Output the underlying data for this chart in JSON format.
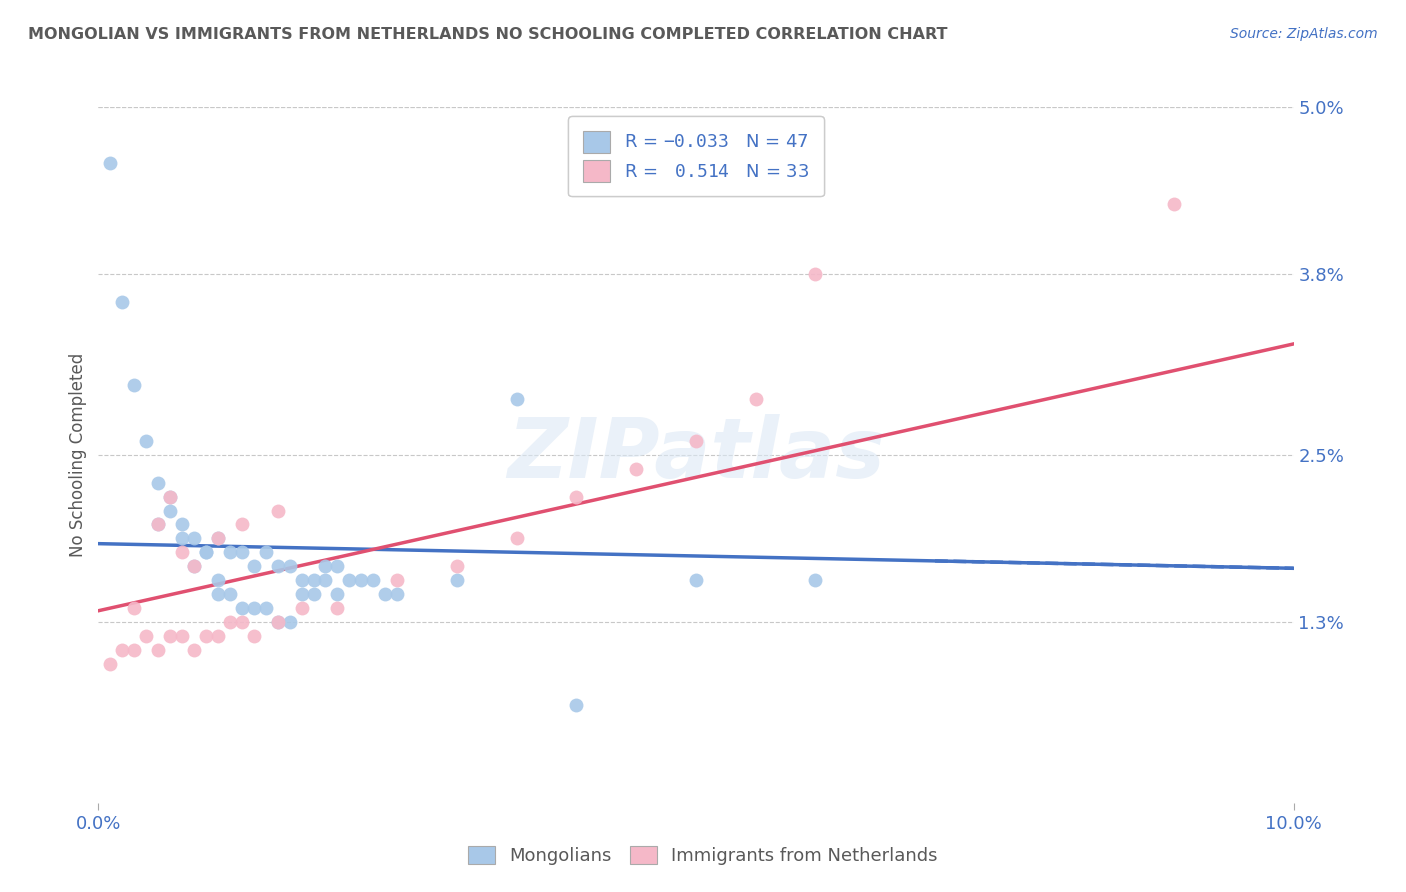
{
  "title": "MONGOLIAN VS IMMIGRANTS FROM NETHERLANDS NO SCHOOLING COMPLETED CORRELATION CHART",
  "source_text": "Source: ZipAtlas.com",
  "ylabel": "No Schooling Completed",
  "xlim": [
    0.0,
    0.1
  ],
  "ylim": [
    -0.005,
    0.055
  ],
  "plot_ylim": [
    0.0,
    0.05
  ],
  "ytick_vals": [
    0.013,
    0.025,
    0.038,
    0.05
  ],
  "ytick_labels": [
    "1.3%",
    "2.5%",
    "3.8%",
    "5.0%"
  ],
  "xtick_vals": [
    0.0,
    0.1
  ],
  "xtick_labels": [
    "0.0%",
    "10.0%"
  ],
  "mongolian_color": "#a8c8e8",
  "netherlands_color": "#f5b8c8",
  "mongolian_line_color": "#4472c4",
  "netherlands_line_color": "#e05070",
  "mongolian_R": -0.033,
  "mongolian_N": 47,
  "netherlands_R": 0.514,
  "netherlands_N": 33,
  "background_color": "#ffffff",
  "grid_color": "#c8c8c8",
  "text_color": "#4472c4",
  "title_color": "#595959",
  "watermark": "ZIPatlas",
  "mongolian_x": [
    0.001,
    0.002,
    0.003,
    0.004,
    0.005,
    0.006,
    0.007,
    0.008,
    0.009,
    0.01,
    0.011,
    0.012,
    0.013,
    0.014,
    0.015,
    0.016,
    0.017,
    0.018,
    0.019,
    0.02,
    0.021,
    0.022,
    0.023,
    0.024,
    0.005,
    0.006,
    0.007,
    0.008,
    0.009,
    0.01,
    0.01,
    0.011,
    0.012,
    0.013,
    0.014,
    0.015,
    0.016,
    0.017,
    0.018,
    0.019,
    0.02,
    0.025,
    0.03,
    0.035,
    0.04,
    0.05,
    0.06
  ],
  "mongolian_y": [
    0.046,
    0.036,
    0.03,
    0.026,
    0.023,
    0.022,
    0.02,
    0.019,
    0.018,
    0.019,
    0.018,
    0.018,
    0.017,
    0.018,
    0.017,
    0.017,
    0.016,
    0.016,
    0.017,
    0.017,
    0.016,
    0.016,
    0.016,
    0.015,
    0.02,
    0.021,
    0.019,
    0.017,
    0.018,
    0.016,
    0.015,
    0.015,
    0.014,
    0.014,
    0.014,
    0.013,
    0.013,
    0.015,
    0.015,
    0.016,
    0.015,
    0.015,
    0.016,
    0.029,
    0.007,
    0.016,
    0.016
  ],
  "netherlands_x": [
    0.001,
    0.002,
    0.003,
    0.004,
    0.005,
    0.006,
    0.007,
    0.008,
    0.009,
    0.01,
    0.011,
    0.012,
    0.013,
    0.015,
    0.017,
    0.02,
    0.025,
    0.03,
    0.035,
    0.04,
    0.045,
    0.05,
    0.055,
    0.003,
    0.005,
    0.006,
    0.007,
    0.008,
    0.01,
    0.012,
    0.015,
    0.06,
    0.09
  ],
  "netherlands_y": [
    0.01,
    0.011,
    0.011,
    0.012,
    0.011,
    0.012,
    0.012,
    0.011,
    0.012,
    0.012,
    0.013,
    0.013,
    0.012,
    0.013,
    0.014,
    0.014,
    0.016,
    0.017,
    0.019,
    0.022,
    0.024,
    0.026,
    0.029,
    0.014,
    0.02,
    0.022,
    0.018,
    0.017,
    0.019,
    0.02,
    0.021,
    0.038,
    0.043
  ]
}
